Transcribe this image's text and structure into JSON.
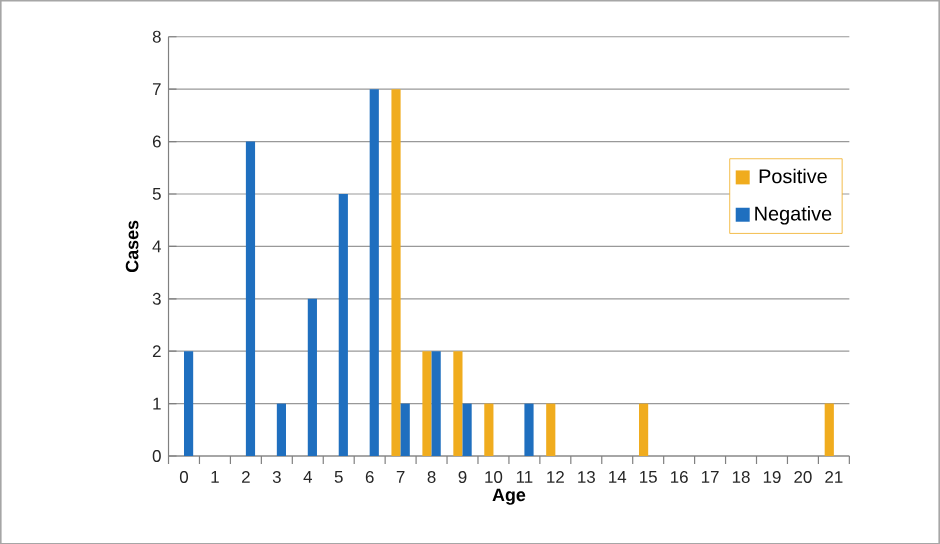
{
  "chart_data": {
    "type": "bar",
    "xlabel": "Age",
    "ylabel": "Cases",
    "categories": [
      "0",
      "1",
      "2",
      "3",
      "4",
      "5",
      "6",
      "7",
      "8",
      "9",
      "10",
      "11",
      "12",
      "13",
      "14",
      "15",
      "16",
      "17",
      "18",
      "19",
      "20",
      "21"
    ],
    "series": [
      {
        "name": "Positive",
        "color": "#f0ac1e",
        "values": [
          0,
          0,
          0,
          0,
          0,
          0,
          0,
          7,
          2,
          2,
          1,
          0,
          1,
          0,
          0,
          1,
          0,
          0,
          0,
          0,
          0,
          1
        ]
      },
      {
        "name": "Negative",
        "color": "#1f6fbf",
        "values": [
          2,
          0,
          6,
          1,
          3,
          5,
          7,
          1,
          2,
          1,
          0,
          1,
          0,
          0,
          0,
          0,
          0,
          0,
          0,
          0,
          0,
          0
        ]
      }
    ],
    "ylim": [
      0,
      8
    ],
    "yticks": [
      0,
      1,
      2,
      3,
      4,
      5,
      6,
      7,
      8
    ],
    "grid": "y",
    "legend": "right"
  }
}
